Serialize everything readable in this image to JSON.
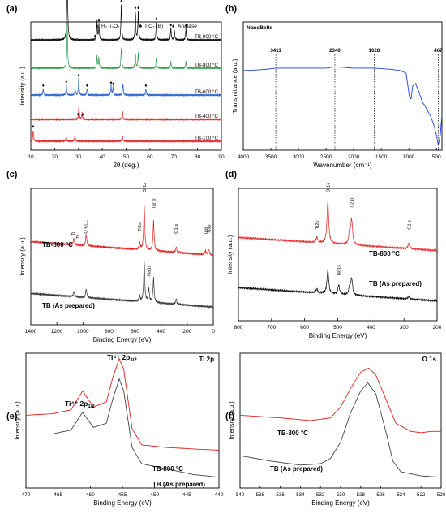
{
  "chart_data": [
    {
      "panel": "(a)",
      "type": "line",
      "xlabel": "2θ (deg.)",
      "ylabel": "Intensity (a.u.)",
      "xlim": [
        10,
        90
      ],
      "xticks": [
        10,
        20,
        30,
        40,
        50,
        60,
        70,
        80,
        90
      ],
      "legend": [
        {
          "marker": "♦",
          "label": "H₂Ti₃O₇"
        },
        {
          "marker": "♣",
          "label": "TiO₂ (B)"
        },
        {
          "marker": "♦",
          "label": "Anatase"
        }
      ],
      "legend_placement": "top-right",
      "series": [
        {
          "name": "TB-900 °C",
          "color": "#000000",
          "baseline": 0.86,
          "peaks": [
            [
              25.3,
              0.7
            ],
            [
              37.8,
              0.14
            ],
            [
              38.6,
              0.12
            ],
            [
              48.0,
              0.28
            ],
            [
              53.9,
              0.22
            ],
            [
              55.1,
              0.22
            ],
            [
              62.7,
              0.14
            ],
            [
              68.8,
              0.09
            ],
            [
              70.3,
              0.07
            ],
            [
              75.1,
              0.09
            ]
          ],
          "markers": [
            25.3,
            37.0,
            38.6,
            48.0,
            53.9,
            55.1,
            62.7,
            68.8,
            75.1
          ]
        },
        {
          "name": "TB-800 °C",
          "color": "#2e9a4e",
          "baseline": 0.64,
          "peaks": [
            [
              25.3,
              0.36
            ],
            [
              37.8,
              0.09
            ],
            [
              38.6,
              0.08
            ],
            [
              48.0,
              0.16
            ],
            [
              53.9,
              0.12
            ],
            [
              55.1,
              0.12
            ],
            [
              62.7,
              0.08
            ],
            [
              68.8,
              0.05
            ],
            [
              75.1,
              0.05
            ]
          ],
          "markers": []
        },
        {
          "name": "TB-600 °C",
          "color": "#1f5fc9",
          "baseline": 0.43,
          "peaks": [
            [
              15.2,
              0.05
            ],
            [
              24.9,
              0.08
            ],
            [
              28.6,
              0.05
            ],
            [
              30.1,
              0.13
            ],
            [
              33.6,
              0.05
            ],
            [
              43.7,
              0.07
            ],
            [
              44.5,
              0.06
            ],
            [
              48.7,
              0.09
            ],
            [
              58.3,
              0.05
            ]
          ],
          "markers": [
            15.2,
            24.9,
            30.1,
            33.6,
            43.7,
            44.5,
            58.3
          ]
        },
        {
          "name": "TB-400 °C",
          "color": "#e02020",
          "baseline": 0.24,
          "peaks": [
            [
              30.2,
              0.1
            ],
            [
              31.5,
              0.05
            ],
            [
              48.5,
              0.06
            ]
          ],
          "markers": [
            29.8,
            31.8
          ]
        },
        {
          "name": "TB-100 °C",
          "color": "#e02020",
          "baseline": 0.07,
          "peaks": [
            [
              11.0,
              0.09
            ],
            [
              24.8,
              0.04
            ],
            [
              28.5,
              0.05
            ],
            [
              48.5,
              0.04
            ]
          ],
          "markers": [
            11.0
          ]
        }
      ]
    },
    {
      "panel": "(b)",
      "type": "line",
      "title": "NanoBelts",
      "xlabel": "Wavenumber (cm⁻¹)",
      "ylabel": "Transmittance (a.u.)",
      "xlim": [
        4000,
        400
      ],
      "xticks": [
        4000,
        3500,
        3000,
        2500,
        2000,
        1500,
        1000,
        500
      ],
      "annotations": [
        {
          "x": 3411,
          "label": "3411"
        },
        {
          "x": 2340,
          "label": "2340"
        },
        {
          "x": 1628,
          "label": "1628"
        },
        {
          "x": 467,
          "label": "467"
        }
      ],
      "series": [
        {
          "name": "",
          "color": "#2040e0",
          "points": [
            [
              4000,
              0.62
            ],
            [
              3600,
              0.63
            ],
            [
              3411,
              0.64
            ],
            [
              3000,
              0.64
            ],
            [
              2500,
              0.64
            ],
            [
              2340,
              0.65
            ],
            [
              2000,
              0.64
            ],
            [
              1628,
              0.64
            ],
            [
              1300,
              0.63
            ],
            [
              1150,
              0.62
            ],
            [
              1050,
              0.6
            ],
            [
              990,
              0.42
            ],
            [
              960,
              0.4
            ],
            [
              930,
              0.5
            ],
            [
              880,
              0.52
            ],
            [
              820,
              0.46
            ],
            [
              760,
              0.38
            ],
            [
              700,
              0.34
            ],
            [
              650,
              0.3
            ],
            [
              600,
              0.26
            ],
            [
              550,
              0.2
            ],
            [
              500,
              0.12
            ],
            [
              467,
              0.04
            ],
            [
              430,
              0.12
            ],
            [
              400,
              0.28
            ]
          ]
        }
      ]
    },
    {
      "panel": "(c)",
      "type": "line",
      "xlabel": "Binding Energy (eV)",
      "ylabel": "Intensity (a.u.)",
      "xlim": [
        1400,
        0
      ],
      "xticks": [
        1400,
        1200,
        1000,
        800,
        600,
        400,
        200,
        0
      ],
      "annotations": [
        {
          "x": 1075,
          "label": "Ti"
        },
        {
          "x": 1040,
          "label": "Ti"
        },
        {
          "x": 980,
          "label": "O KLL"
        },
        {
          "x": 565,
          "label": "Ti2s"
        },
        {
          "x": 530,
          "label": "O 1s"
        },
        {
          "x": 458,
          "label": "Ti2 p"
        },
        {
          "x": 285,
          "label": "C1 s"
        },
        {
          "x": 60,
          "label": "Ti3s"
        },
        {
          "x": 35,
          "label": "Ti3p"
        },
        {
          "x": 495,
          "label": "Na1s"
        }
      ],
      "series": [
        {
          "name": "TB-800 °C",
          "color": "#e02020",
          "baseline": 0.56,
          "peaks": [
            [
              1070,
              0.05
            ],
            [
              975,
              0.08
            ],
            [
              565,
              0.05
            ],
            [
              530,
              0.34
            ],
            [
              458,
              0.22
            ],
            [
              285,
              0.04
            ],
            [
              60,
              0.03
            ],
            [
              35,
              0.04
            ]
          ]
        },
        {
          "name": "TB (As prepared)",
          "color": "#333333",
          "baseline": 0.18,
          "peaks": [
            [
              1070,
              0.04
            ],
            [
              975,
              0.06
            ],
            [
              565,
              0.04
            ],
            [
              530,
              0.3
            ],
            [
              495,
              0.1
            ],
            [
              458,
              0.18
            ],
            [
              285,
              0.04
            ]
          ]
        }
      ]
    },
    {
      "panel": "(d)",
      "type": "line",
      "xlabel": "Binding Energy (eV)",
      "ylabel": "Intensity (a.u.)",
      "xlim": [
        800,
        200
      ],
      "xticks": [
        800,
        700,
        600,
        500,
        400,
        300,
        200
      ],
      "annotations": [
        {
          "x": 563,
          "label": "Ti2s"
        },
        {
          "x": 530,
          "label": "O 1s"
        },
        {
          "x": 458,
          "label": "Ti2 p"
        },
        {
          "x": 285,
          "label": "C1 s"
        },
        {
          "x": 497,
          "label": "Na1s"
        }
      ],
      "series": [
        {
          "name": "TB-800 °C",
          "color": "#e02020",
          "baseline": 0.58,
          "peaks": [
            [
              563,
              0.04
            ],
            [
              530,
              0.32
            ],
            [
              464,
              0.1
            ],
            [
              458,
              0.18
            ],
            [
              285,
              0.04
            ]
          ]
        },
        {
          "name": "TB (As prepared)",
          "color": "#000000",
          "baseline": 0.2,
          "peaks": [
            [
              563,
              0.03
            ],
            [
              530,
              0.18
            ],
            [
              497,
              0.07
            ],
            [
              464,
              0.06
            ],
            [
              458,
              0.12
            ],
            [
              285,
              0.02
            ]
          ]
        }
      ]
    },
    {
      "panel": "(e)",
      "type": "line",
      "title": "Ti 2p",
      "xlabel": "Binding Energy (eV)",
      "ylabel": "Intensity (a.u.)",
      "xlim": [
        470,
        440
      ],
      "xticks": [
        470,
        465,
        460,
        455,
        450,
        445,
        440
      ],
      "annotations": [
        {
          "x": 461.2,
          "label_main": "Ti⁴⁺ 2p",
          "label_sub": "1/2"
        },
        {
          "x": 455.5,
          "label_main": "Ti⁴⁺ 2p",
          "label_sub": "3/2"
        }
      ],
      "series": [
        {
          "name": "TB-800 °C",
          "color": "#e02020",
          "points": [
            [
              470,
              0.54
            ],
            [
              466,
              0.55
            ],
            [
              463,
              0.58
            ],
            [
              461.2,
              0.72
            ],
            [
              459.5,
              0.6
            ],
            [
              457.5,
              0.64
            ],
            [
              456.5,
              0.82
            ],
            [
              455.5,
              0.96
            ],
            [
              454.8,
              0.88
            ],
            [
              453.5,
              0.44
            ],
            [
              452,
              0.32
            ],
            [
              448,
              0.3
            ],
            [
              444,
              0.29
            ],
            [
              440,
              0.28
            ]
          ]
        },
        {
          "name": "TB (As prepared)",
          "color": "#444444",
          "points": [
            [
              470,
              0.4
            ],
            [
              466,
              0.4
            ],
            [
              463,
              0.43
            ],
            [
              461.2,
              0.56
            ],
            [
              459.5,
              0.45
            ],
            [
              457.5,
              0.48
            ],
            [
              456.5,
              0.66
            ],
            [
              455.5,
              0.81
            ],
            [
              454.8,
              0.72
            ],
            [
              453.5,
              0.3
            ],
            [
              452,
              0.18
            ],
            [
              448,
              0.14
            ],
            [
              444,
              0.1
            ],
            [
              440,
              0.08
            ]
          ]
        }
      ]
    },
    {
      "panel": "(f)",
      "type": "line",
      "title": "O 1s",
      "xlabel": "Binding Energy (eV)",
      "ylabel": "Intensity (a.u.)",
      "xlim": [
        540,
        520
      ],
      "xticks": [
        540,
        538,
        536,
        534,
        532,
        530,
        528,
        526,
        524,
        522,
        520
      ],
      "series": [
        {
          "name": "TB-800 °C",
          "color": "#e02020",
          "points": [
            [
              540,
              0.54
            ],
            [
              536,
              0.52
            ],
            [
              533,
              0.5
            ],
            [
              531,
              0.52
            ],
            [
              530,
              0.6
            ],
            [
              529,
              0.74
            ],
            [
              528,
              0.86
            ],
            [
              527.2,
              0.89
            ],
            [
              526.5,
              0.84
            ],
            [
              525.5,
              0.66
            ],
            [
              524.5,
              0.48
            ],
            [
              523,
              0.42
            ],
            [
              522,
              0.41
            ],
            [
              521,
              0.42
            ],
            [
              520,
              0.42
            ]
          ]
        },
        {
          "name": "TB (As prepared)",
          "color": "#444444",
          "points": [
            [
              540,
              0.24
            ],
            [
              537,
              0.2
            ],
            [
              534,
              0.17
            ],
            [
              532,
              0.18
            ],
            [
              531,
              0.22
            ],
            [
              530,
              0.34
            ],
            [
              529,
              0.56
            ],
            [
              528,
              0.72
            ],
            [
              527.3,
              0.78
            ],
            [
              526.5,
              0.7
            ],
            [
              525.5,
              0.42
            ],
            [
              524.8,
              0.2
            ],
            [
              524,
              0.12
            ],
            [
              522,
              0.09
            ],
            [
              520,
              0.08
            ]
          ]
        }
      ]
    }
  ]
}
